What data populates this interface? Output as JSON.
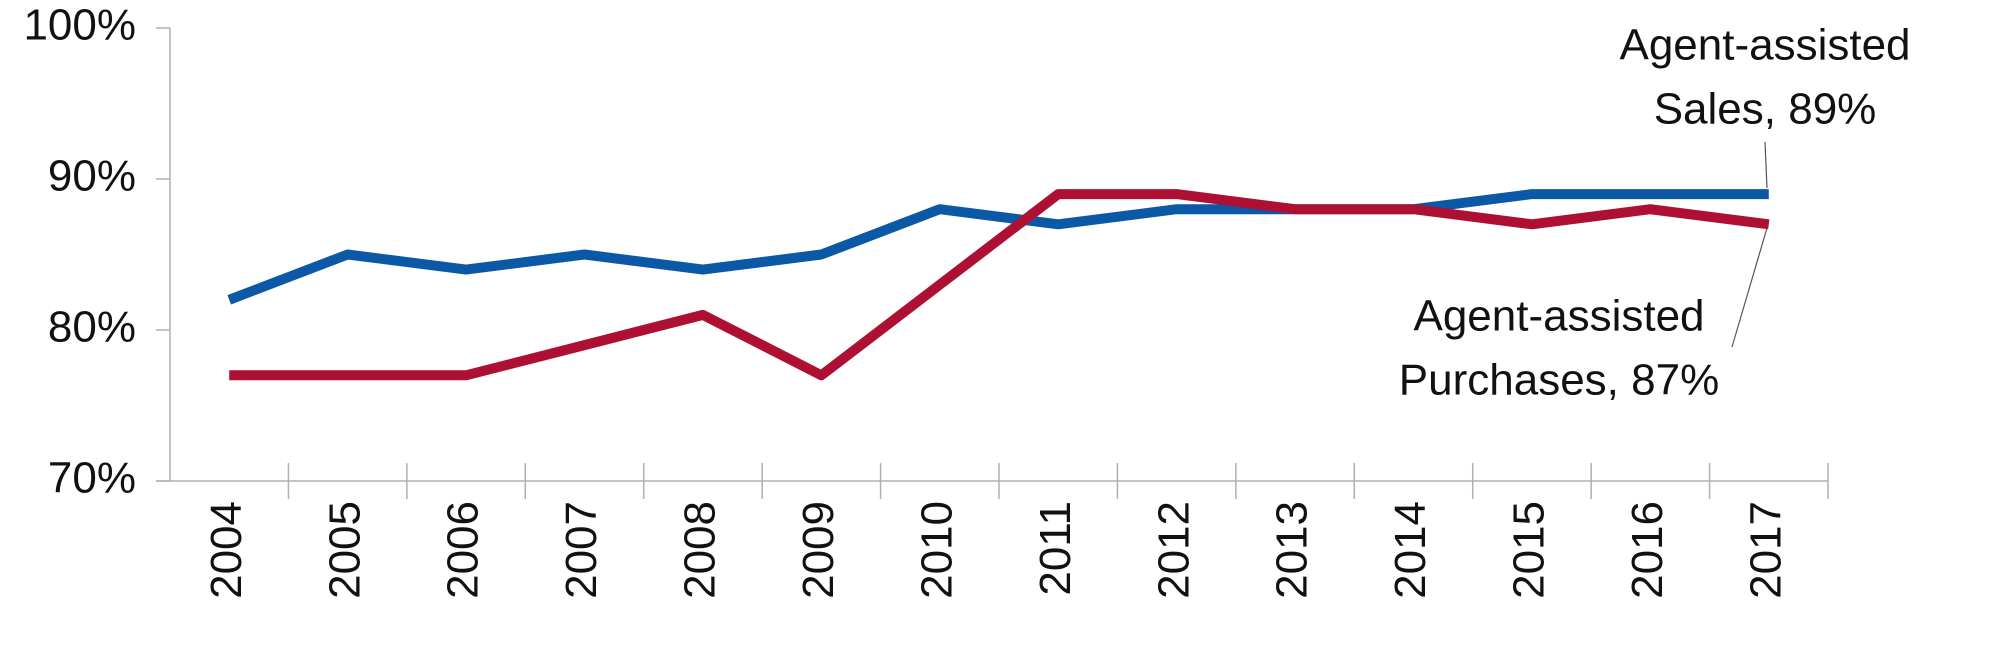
{
  "chart_data": {
    "type": "line",
    "categories": [
      "2004",
      "2005",
      "2006",
      "2007",
      "2008",
      "2009",
      "2010",
      "2011",
      "2012",
      "2013",
      "2014",
      "2015",
      "2016",
      "2017"
    ],
    "series": [
      {
        "name": "Agent-assisted Sales",
        "color": "#0b59a6",
        "values": [
          82,
          85,
          84,
          85,
          84,
          85,
          88,
          87,
          88,
          88,
          88,
          89,
          89,
          89
        ]
      },
      {
        "name": "Agent-assisted Purchases",
        "color": "#ae1034",
        "values": [
          77,
          77,
          77,
          79,
          81,
          77,
          83,
          89,
          89,
          88,
          88,
          87,
          88,
          87
        ]
      }
    ],
    "ylim": [
      70,
      100
    ],
    "yticks": [
      {
        "value": 70,
        "label": "70%"
      },
      {
        "value": 80,
        "label": "80%"
      },
      {
        "value": 90,
        "label": "90%"
      },
      {
        "value": 100,
        "label": "100%"
      }
    ],
    "annotations": [
      {
        "series": 0,
        "lines": [
          "Agent-assisted",
          "Sales, 89%"
        ]
      },
      {
        "series": 1,
        "lines": [
          "Agent-assisted",
          "Purchases, 87%"
        ]
      }
    ]
  }
}
